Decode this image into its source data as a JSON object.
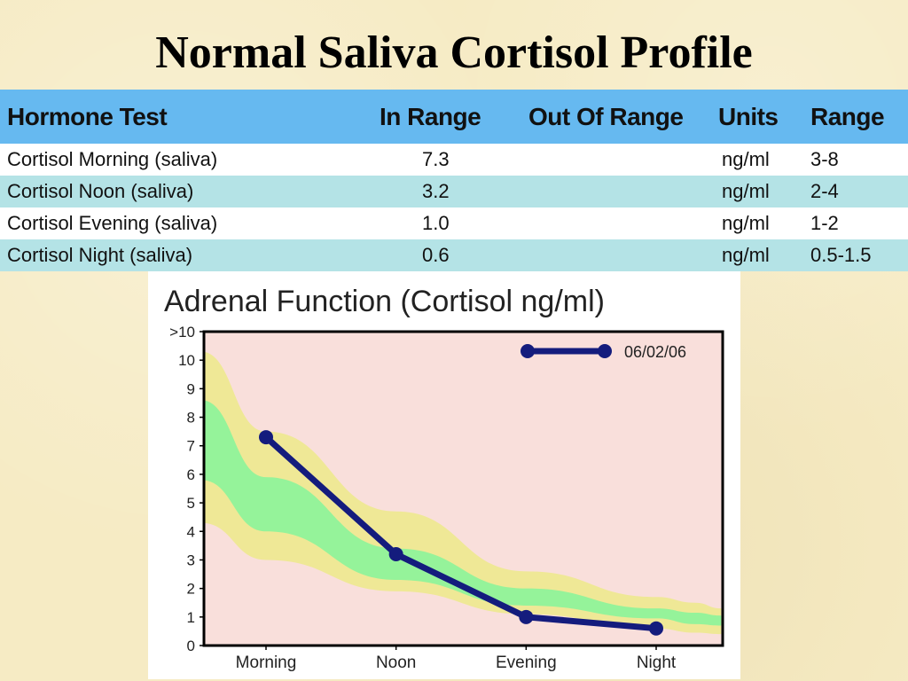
{
  "slide": {
    "title": "Normal Saliva Cortisol Profile"
  },
  "table": {
    "headers": [
      "Hormone Test",
      "In Range",
      "Out Of Range",
      "Units",
      "Range"
    ],
    "rows": [
      [
        "Cortisol Morning (saliva)",
        "7.3",
        "",
        "ng/ml",
        "3-8"
      ],
      [
        "Cortisol Noon (saliva)",
        "3.2",
        "",
        "ng/ml",
        "2-4"
      ],
      [
        "Cortisol Evening (saliva)",
        "1.0",
        "",
        "ng/ml",
        "1-2"
      ],
      [
        "Cortisol Night (saliva)",
        "0.6",
        "",
        "ng/ml",
        "0.5-1.5"
      ]
    ]
  },
  "chart_data": {
    "type": "line",
    "title": "Adrenal Function (Cortisol ng/ml)",
    "categories": [
      "Morning",
      "Noon",
      "Evening",
      "Night"
    ],
    "series": [
      {
        "name": "06/02/06",
        "values": [
          7.3,
          3.2,
          1.0,
          0.6
        ]
      }
    ],
    "ylim": [
      0,
      11
    ],
    "y_ticks": [
      "0",
      "1",
      "2",
      "3",
      "4",
      "5",
      "6",
      "7",
      "8",
      "9",
      "10",
      ">10"
    ],
    "y_tick_values": [
      0,
      1,
      2,
      3,
      4,
      5,
      6,
      7,
      8,
      9,
      10,
      11
    ],
    "bands": {
      "outer": {
        "upper": [
          10.3,
          7.5,
          4.7,
          2.6,
          1.7,
          1.5,
          1.3
        ],
        "lower": [
          4.3,
          3.0,
          1.9,
          1.1,
          0.6,
          0.45,
          0.4
        ]
      },
      "inner": {
        "upper": [
          8.6,
          5.9,
          3.4,
          2.0,
          1.3,
          1.15,
          1.05
        ],
        "lower": [
          5.8,
          4.0,
          2.3,
          1.4,
          0.95,
          0.75,
          0.7
        ]
      },
      "x_positions": [
        -0.5,
        0,
        1,
        2,
        3,
        3.3,
        3.5
      ]
    },
    "legend_position": "top-right",
    "colors": {
      "plot_bg": "#f9dfdb",
      "outer_band": "#efe896",
      "inner_band": "#95f39a",
      "line": "#141c7d",
      "axis": "#000000"
    }
  }
}
